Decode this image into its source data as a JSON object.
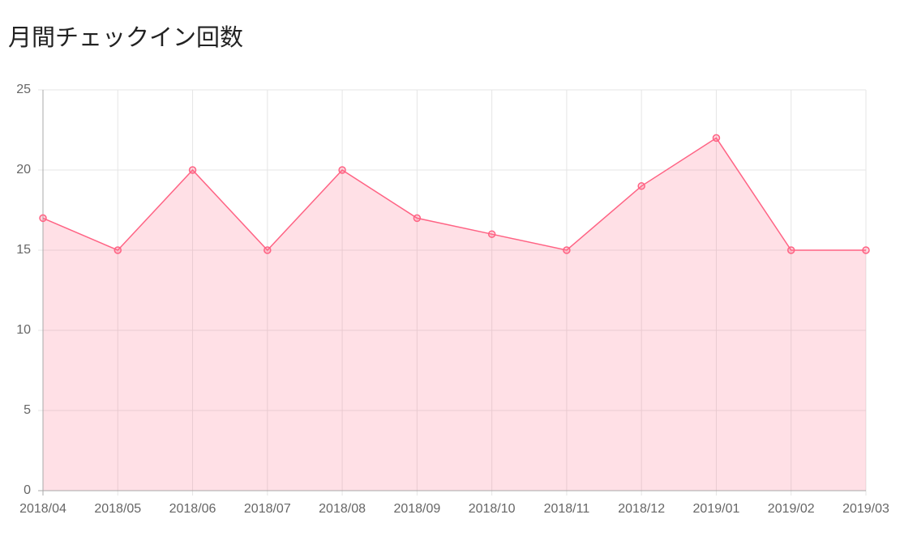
{
  "page": {
    "title": "月間チェックイン回数"
  },
  "colors": {
    "line": "#ff6384",
    "fill": "rgba(255, 99, 132, 0.2)",
    "grid": "#e5e5e5",
    "axis": "#a8a8a8",
    "tick_text": "#666666"
  },
  "chart_data": {
    "type": "area",
    "categories": [
      "2018/04",
      "2018/05",
      "2018/06",
      "2018/07",
      "2018/08",
      "2018/09",
      "2018/10",
      "2018/11",
      "2018/12",
      "2019/01",
      "2019/02",
      "2019/03"
    ],
    "values": [
      17,
      15,
      20,
      15,
      20,
      17,
      16,
      15,
      19,
      22,
      15,
      15
    ],
    "title": "",
    "xlabel": "",
    "ylabel": "",
    "ylim": [
      0,
      25
    ],
    "yticks": [
      0,
      5,
      10,
      15,
      20,
      25
    ],
    "grid": true,
    "legend": "none",
    "marker": "hollow-circle"
  }
}
